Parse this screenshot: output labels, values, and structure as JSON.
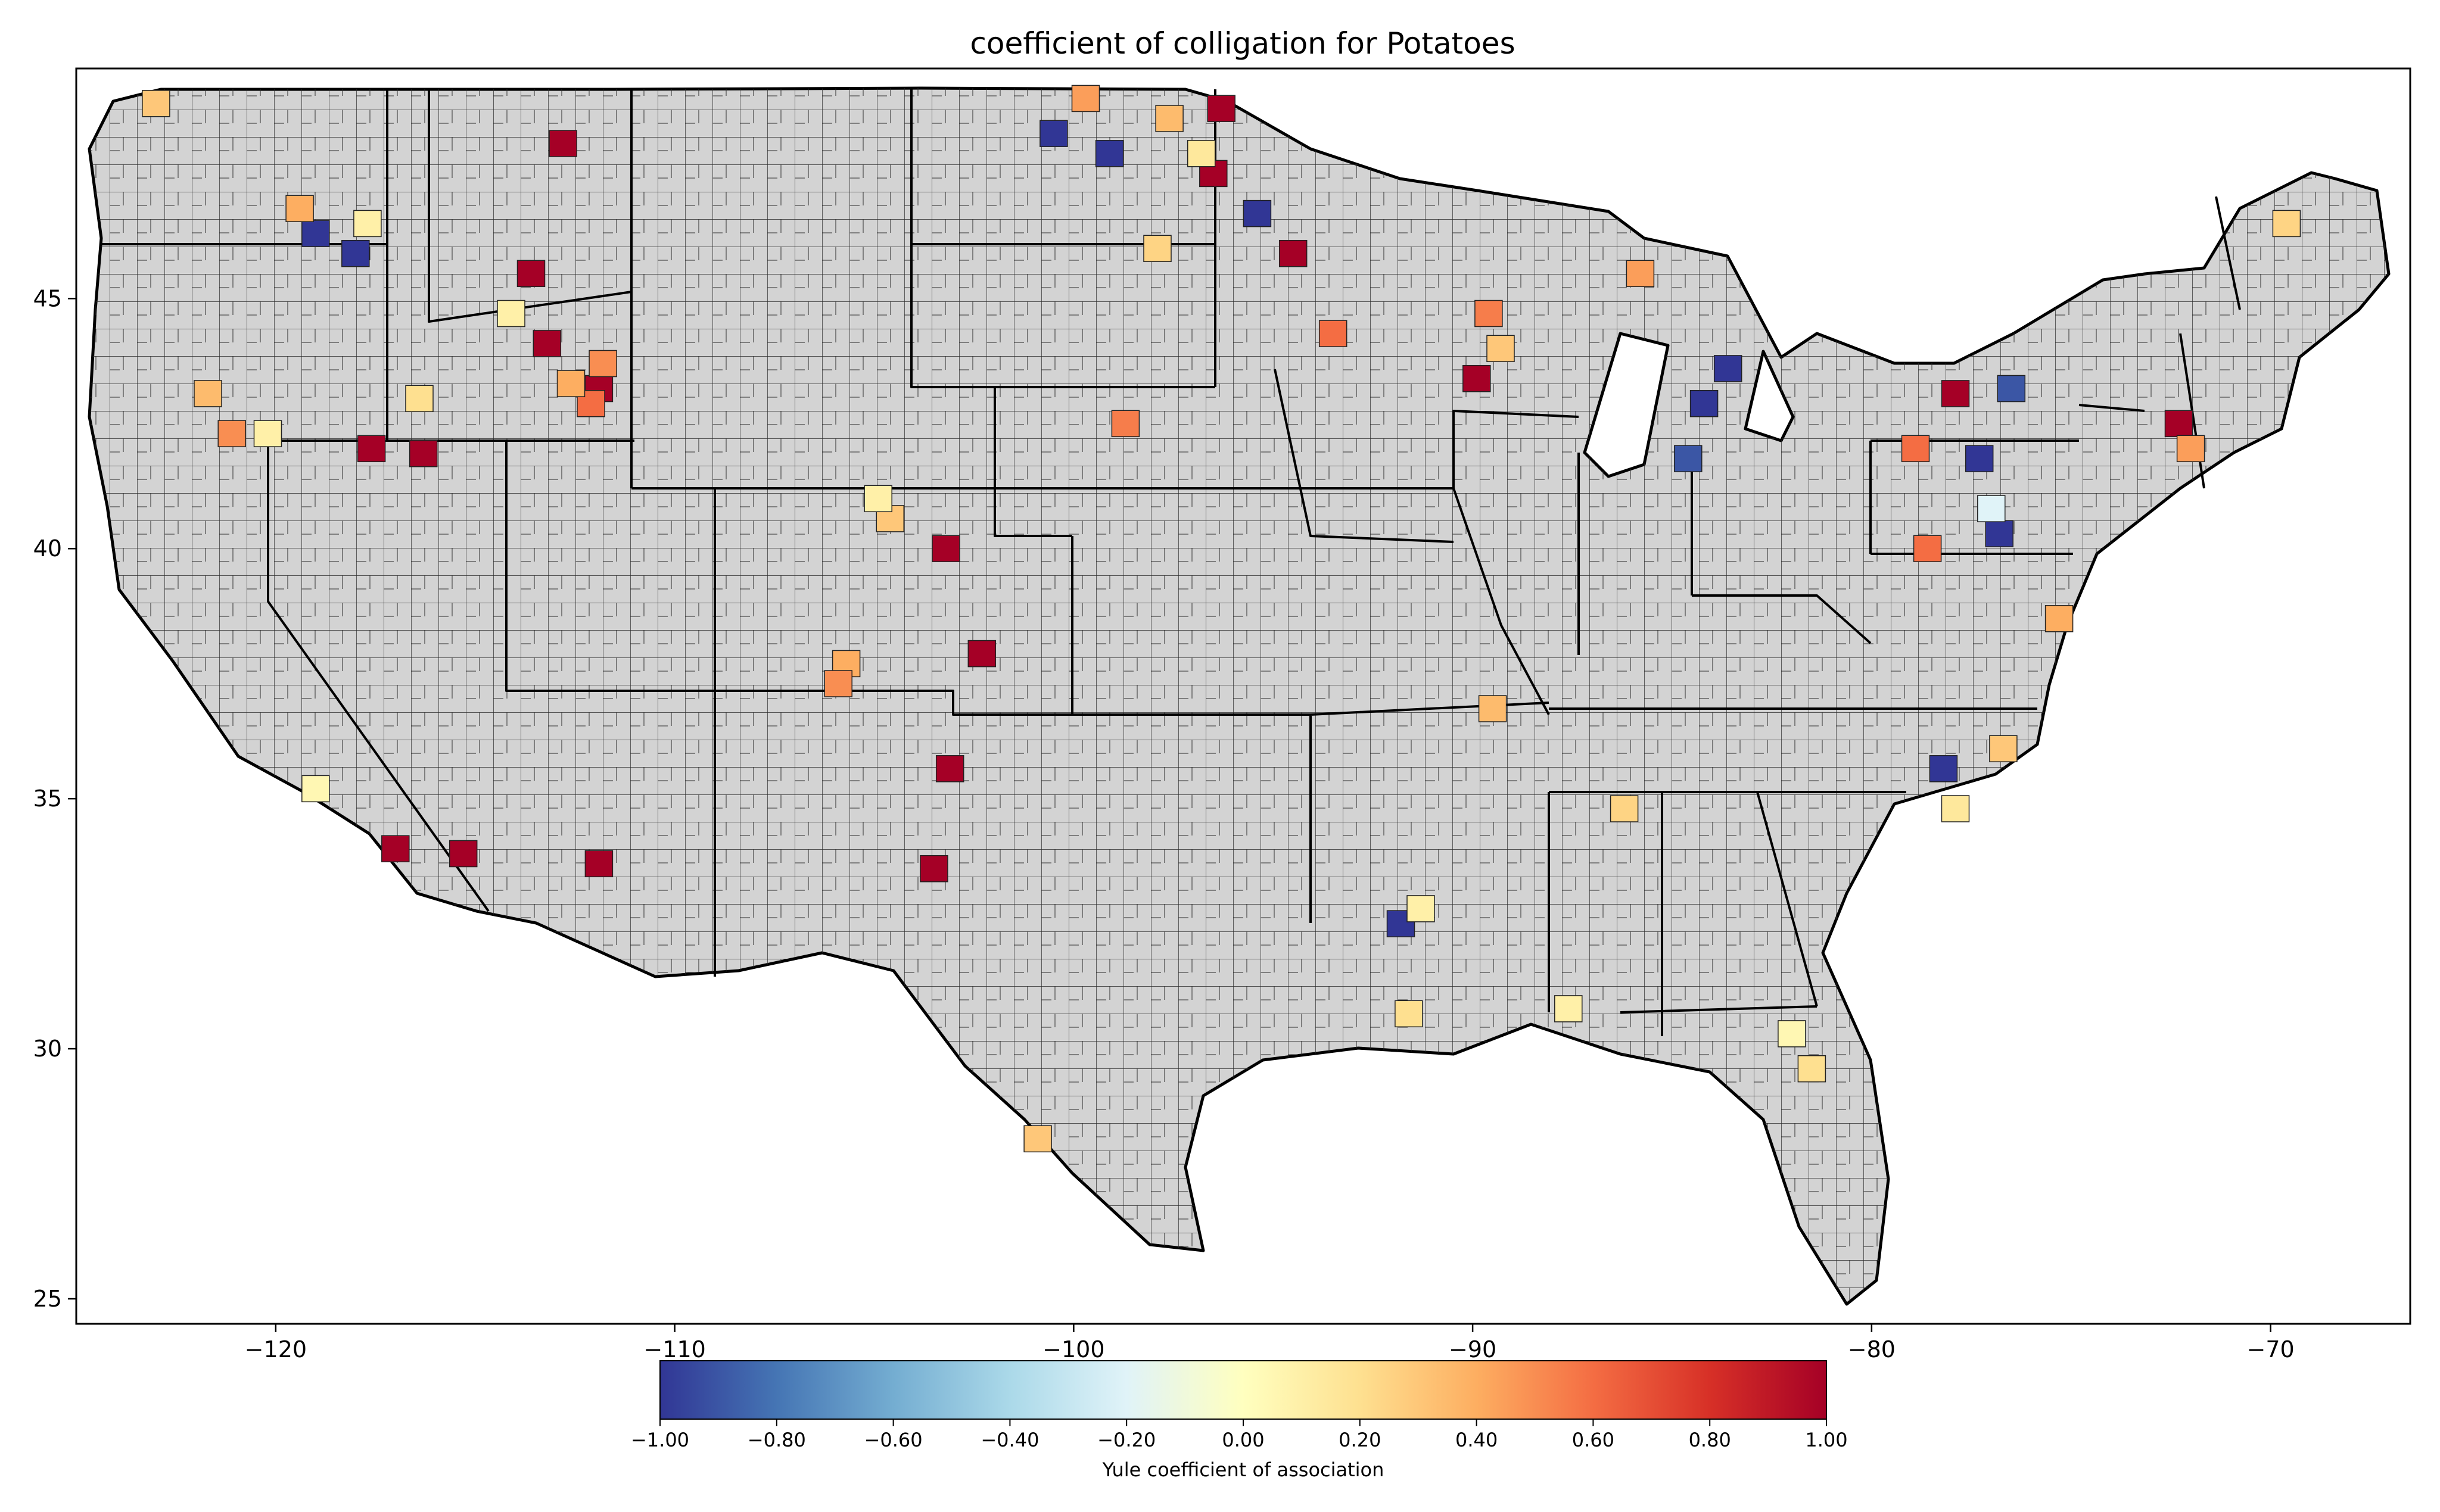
{
  "title": "coefficient of colligation for Potatoes",
  "map": {
    "lon_range": [
      -125.0,
      -66.5
    ],
    "lat_range": [
      24.5,
      49.6
    ],
    "base_color": "#d3d3d3",
    "outline_color": "#000000",
    "xticks": [
      {
        "value": -120,
        "label": "−120"
      },
      {
        "value": -110,
        "label": "−110"
      },
      {
        "value": -100,
        "label": "−100"
      },
      {
        "value": -90,
        "label": "−90"
      },
      {
        "value": -80,
        "label": "−80"
      },
      {
        "value": -70,
        "label": "−70"
      }
    ],
    "yticks": [
      {
        "value": 25,
        "label": "25"
      },
      {
        "value": 30,
        "label": "30"
      },
      {
        "value": 35,
        "label": "35"
      },
      {
        "value": 40,
        "label": "40"
      },
      {
        "value": 45,
        "label": "45"
      }
    ],
    "regions": [
      {
        "lon": -117.6,
        "lat": 42.0,
        "value": 1.0
      },
      {
        "lon": -116.3,
        "lat": 41.9,
        "value": 1.0
      },
      {
        "lon": -115.3,
        "lat": 33.9,
        "value": 1.0
      },
      {
        "lon": -117.0,
        "lat": 34.0,
        "value": 1.0
      },
      {
        "lon": -111.9,
        "lat": 33.7,
        "value": 1.0
      },
      {
        "lon": -113.6,
        "lat": 45.5,
        "value": 1.0
      },
      {
        "lon": -113.2,
        "lat": 44.1,
        "value": 1.0
      },
      {
        "lon": -111.9,
        "lat": 43.2,
        "value": 1.0
      },
      {
        "lon": -112.8,
        "lat": 48.1,
        "value": 1.0
      },
      {
        "lon": -103.2,
        "lat": 40.0,
        "value": 1.0
      },
      {
        "lon": -102.3,
        "lat": 37.9,
        "value": 1.0
      },
      {
        "lon": -103.1,
        "lat": 35.6,
        "value": 1.0
      },
      {
        "lon": -103.5,
        "lat": 33.6,
        "value": 1.0
      },
      {
        "lon": -96.5,
        "lat": 47.5,
        "value": 1.0
      },
      {
        "lon": -96.3,
        "lat": 48.8,
        "value": 1.0
      },
      {
        "lon": -94.5,
        "lat": 45.9,
        "value": 1.0
      },
      {
        "lon": -89.9,
        "lat": 43.4,
        "value": 1.0
      },
      {
        "lon": -77.9,
        "lat": 43.1,
        "value": 1.0
      },
      {
        "lon": -72.3,
        "lat": 42.5,
        "value": 1.0
      },
      {
        "lon": -100.5,
        "lat": 48.3,
        "value": -1.0
      },
      {
        "lon": -99.1,
        "lat": 47.9,
        "value": -1.0
      },
      {
        "lon": -95.4,
        "lat": 46.7,
        "value": -1.0
      },
      {
        "lon": -118.0,
        "lat": 45.9,
        "value": -1.0
      },
      {
        "lon": -119.0,
        "lat": 46.3,
        "value": -1.0
      },
      {
        "lon": -84.2,
        "lat": 42.9,
        "value": -1.0
      },
      {
        "lon": -83.6,
        "lat": 43.6,
        "value": -1.0
      },
      {
        "lon": -77.3,
        "lat": 41.8,
        "value": -1.0
      },
      {
        "lon": -76.8,
        "lat": 40.3,
        "value": -1.0
      },
      {
        "lon": -78.2,
        "lat": 35.6,
        "value": -1.0
      },
      {
        "lon": -91.8,
        "lat": 32.5,
        "value": -1.0
      },
      {
        "lon": -76.5,
        "lat": 43.2,
        "value": -0.9
      },
      {
        "lon": -84.6,
        "lat": 41.8,
        "value": -0.9
      },
      {
        "lon": -119.4,
        "lat": 46.8,
        "value": 0.4
      },
      {
        "lon": -117.7,
        "lat": 46.5,
        "value": 0.1
      },
      {
        "lon": -121.1,
        "lat": 42.3,
        "value": 0.5
      },
      {
        "lon": -120.2,
        "lat": 42.3,
        "value": 0.1
      },
      {
        "lon": -121.7,
        "lat": 43.1,
        "value": 0.35
      },
      {
        "lon": -119.0,
        "lat": 35.2,
        "value": 0.05
      },
      {
        "lon": -116.4,
        "lat": 43.0,
        "value": 0.2
      },
      {
        "lon": -114.1,
        "lat": 44.7,
        "value": 0.1
      },
      {
        "lon": -112.1,
        "lat": 42.9,
        "value": 0.6
      },
      {
        "lon": -111.8,
        "lat": 43.7,
        "value": 0.5
      },
      {
        "lon": -112.6,
        "lat": 43.3,
        "value": 0.4
      },
      {
        "lon": -104.6,
        "lat": 40.6,
        "value": 0.3
      },
      {
        "lon": -105.7,
        "lat": 37.7,
        "value": 0.4
      },
      {
        "lon": -105.9,
        "lat": 37.3,
        "value": 0.5
      },
      {
        "lon": -104.9,
        "lat": 41.0,
        "value": 0.1
      },
      {
        "lon": -98.7,
        "lat": 42.5,
        "value": 0.55
      },
      {
        "lon": -99.7,
        "lat": 49.0,
        "value": 0.45
      },
      {
        "lon": -97.6,
        "lat": 48.6,
        "value": 0.35
      },
      {
        "lon": -96.8,
        "lat": 47.9,
        "value": 0.15
      },
      {
        "lon": -97.9,
        "lat": 46.0,
        "value": 0.25
      },
      {
        "lon": -93.5,
        "lat": 44.3,
        "value": 0.6
      },
      {
        "lon": -89.6,
        "lat": 44.7,
        "value": 0.55
      },
      {
        "lon": -89.3,
        "lat": 44.0,
        "value": 0.3
      },
      {
        "lon": -85.8,
        "lat": 45.5,
        "value": 0.45
      },
      {
        "lon": -78.9,
        "lat": 42.0,
        "value": 0.6
      },
      {
        "lon": -78.6,
        "lat": 40.0,
        "value": 0.6
      },
      {
        "lon": -77.0,
        "lat": 40.8,
        "value": -0.2
      },
      {
        "lon": -75.3,
        "lat": 38.6,
        "value": 0.4
      },
      {
        "lon": -76.7,
        "lat": 36.0,
        "value": 0.3
      },
      {
        "lon": -77.9,
        "lat": 34.8,
        "value": 0.15
      },
      {
        "lon": -86.2,
        "lat": 34.8,
        "value": 0.25
      },
      {
        "lon": -87.6,
        "lat": 30.8,
        "value": 0.1
      },
      {
        "lon": -82.0,
        "lat": 30.3,
        "value": 0.05
      },
      {
        "lon": -81.5,
        "lat": 29.6,
        "value": 0.2
      },
      {
        "lon": -91.6,
        "lat": 30.7,
        "value": 0.2
      },
      {
        "lon": -91.3,
        "lat": 32.8,
        "value": 0.1
      },
      {
        "lon": -100.9,
        "lat": 28.2,
        "value": 0.3
      },
      {
        "lon": -89.5,
        "lat": 36.8,
        "value": 0.35
      },
      {
        "lon": -69.6,
        "lat": 46.5,
        "value": 0.25
      },
      {
        "lon": -72.0,
        "lat": 42.0,
        "value": 0.45
      },
      {
        "lon": -123.0,
        "lat": 48.9,
        "value": 0.3
      }
    ]
  },
  "colorbar": {
    "label": "Yule coefficient of association",
    "vmin": -1.0,
    "vmax": 1.0,
    "colormap": "RdYlBu_r",
    "stops": [
      "#313695",
      "#4575b4",
      "#74add1",
      "#abd9e9",
      "#e0f3f8",
      "#ffffbf",
      "#fee090",
      "#fdae61",
      "#f46d43",
      "#d73027",
      "#a50026"
    ],
    "ticks": [
      {
        "value": -1.0,
        "label": "−1.00"
      },
      {
        "value": -0.8,
        "label": "−0.80"
      },
      {
        "value": -0.6,
        "label": "−0.60"
      },
      {
        "value": -0.4,
        "label": "−0.40"
      },
      {
        "value": -0.2,
        "label": "−0.20"
      },
      {
        "value": 0.0,
        "label": "0.00"
      },
      {
        "value": 0.2,
        "label": "0.20"
      },
      {
        "value": 0.4,
        "label": "0.40"
      },
      {
        "value": 0.6,
        "label": "0.60"
      },
      {
        "value": 0.8,
        "label": "0.80"
      },
      {
        "value": 1.0,
        "label": "1.00"
      }
    ]
  }
}
